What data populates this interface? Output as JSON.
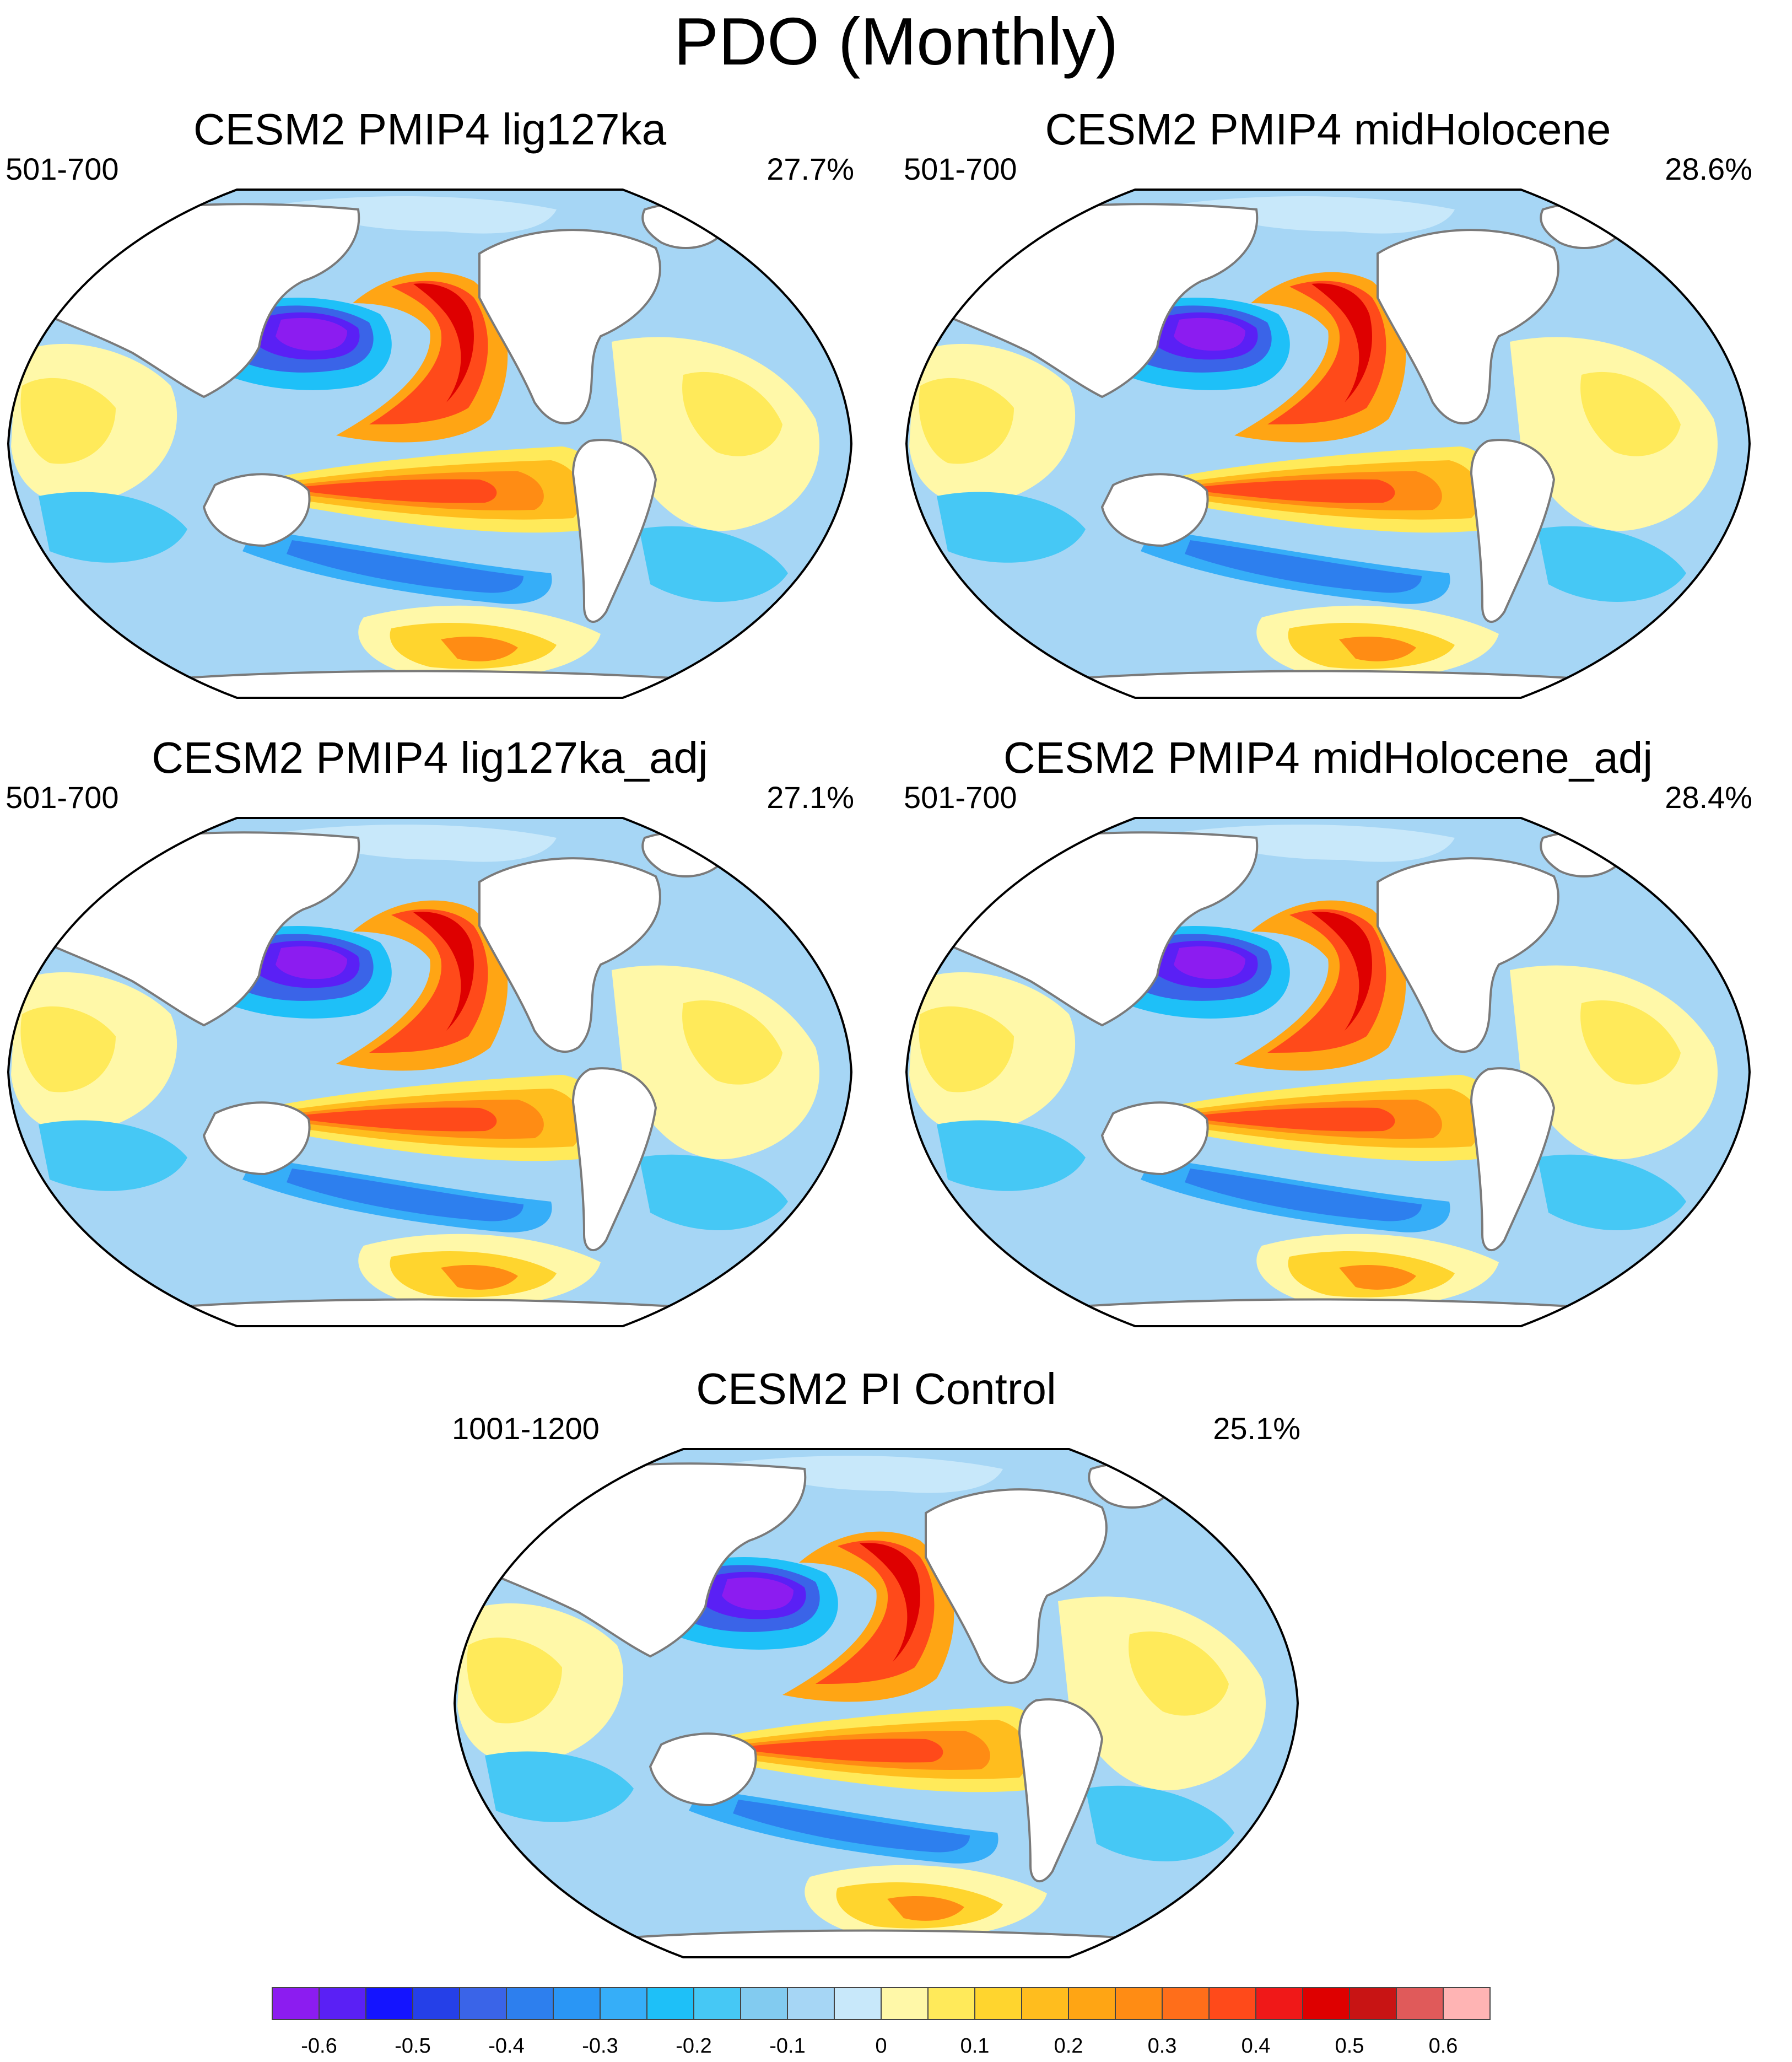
{
  "title": "PDO (Monthly)",
  "panels": [
    {
      "title": "CESM2 PMIP4 lig127ka",
      "period": "501-700",
      "percent": "27.7%"
    },
    {
      "title": "CESM2 PMIP4 midHolocene",
      "period": "501-700",
      "percent": "28.6%"
    },
    {
      "title": "CESM2 PMIP4 lig127ka_adj",
      "period": "501-700",
      "percent": "27.1%"
    },
    {
      "title": "CESM2 PMIP4 midHolocene_adj",
      "period": "501-700",
      "percent": "28.4%"
    },
    {
      "title": "CESM2 PI Control",
      "period": "1001-1200",
      "percent": "25.1%"
    }
  ],
  "colorbar": {
    "labels": [
      "-0.6",
      "-0.5",
      "-0.4",
      "-0.3",
      "-0.2",
      "-0.1",
      "0",
      "0.1",
      "0.2",
      "0.3",
      "0.4",
      "0.5",
      "0.6"
    ],
    "colors": [
      "#8c1cf0",
      "#5a20f5",
      "#1414ff",
      "#2540e8",
      "#3a64e8",
      "#2d7fee",
      "#2a96f5",
      "#36aef8",
      "#1ec0f8",
      "#46c8f5",
      "#82cbf0",
      "#a6d6f5",
      "#c8e8fa",
      "#fff8a8",
      "#ffea5a",
      "#ffd52e",
      "#ffbd1e",
      "#ffa514",
      "#ff8c14",
      "#ff6e1a",
      "#ff4a1a",
      "#f01818",
      "#de0000",
      "#c81414",
      "#e05a5a",
      "#ffb4b4"
    ]
  }
}
